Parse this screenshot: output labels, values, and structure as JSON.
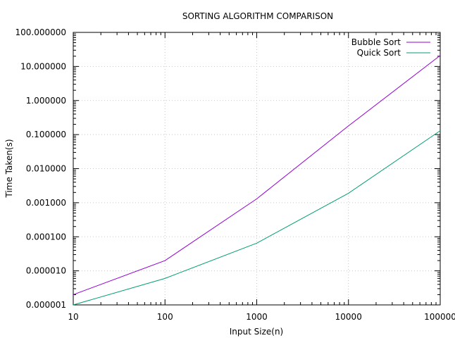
{
  "chart_data": {
    "type": "line",
    "title": "SORTING ALGORITHM COMPARISON",
    "xlabel": "Input Size(n)",
    "ylabel": "Time Taken(s)",
    "x_scale": "log",
    "y_scale": "log",
    "xlim": [
      10,
      100000
    ],
    "ylim": [
      1e-06,
      100
    ],
    "x_ticks": [
      10,
      100,
      1000,
      10000,
      100000
    ],
    "x_tick_labels": [
      "10",
      "100",
      "1000",
      "10000",
      "100000"
    ],
    "y_ticks": [
      1e-06,
      1e-05,
      0.0001,
      0.001,
      0.01,
      0.1,
      1,
      10,
      100
    ],
    "y_tick_labels": [
      "0.000001",
      "0.000010",
      "0.000100",
      "0.001000",
      "0.010000",
      "0.100000",
      "1.000000",
      "10.000000",
      "100.000000"
    ],
    "grid": true,
    "legend_position": "top-right",
    "x": [
      10,
      100,
      1000,
      10000,
      100000
    ],
    "series": [
      {
        "name": "Bubble Sort",
        "color": "#9400d3",
        "values": [
          2e-06,
          2e-05,
          0.0013,
          0.18,
          21
        ]
      },
      {
        "name": "Quick Sort",
        "color": "#009e73",
        "values": [
          1e-06,
          6e-06,
          6.5e-05,
          0.0019,
          0.13
        ]
      }
    ]
  }
}
